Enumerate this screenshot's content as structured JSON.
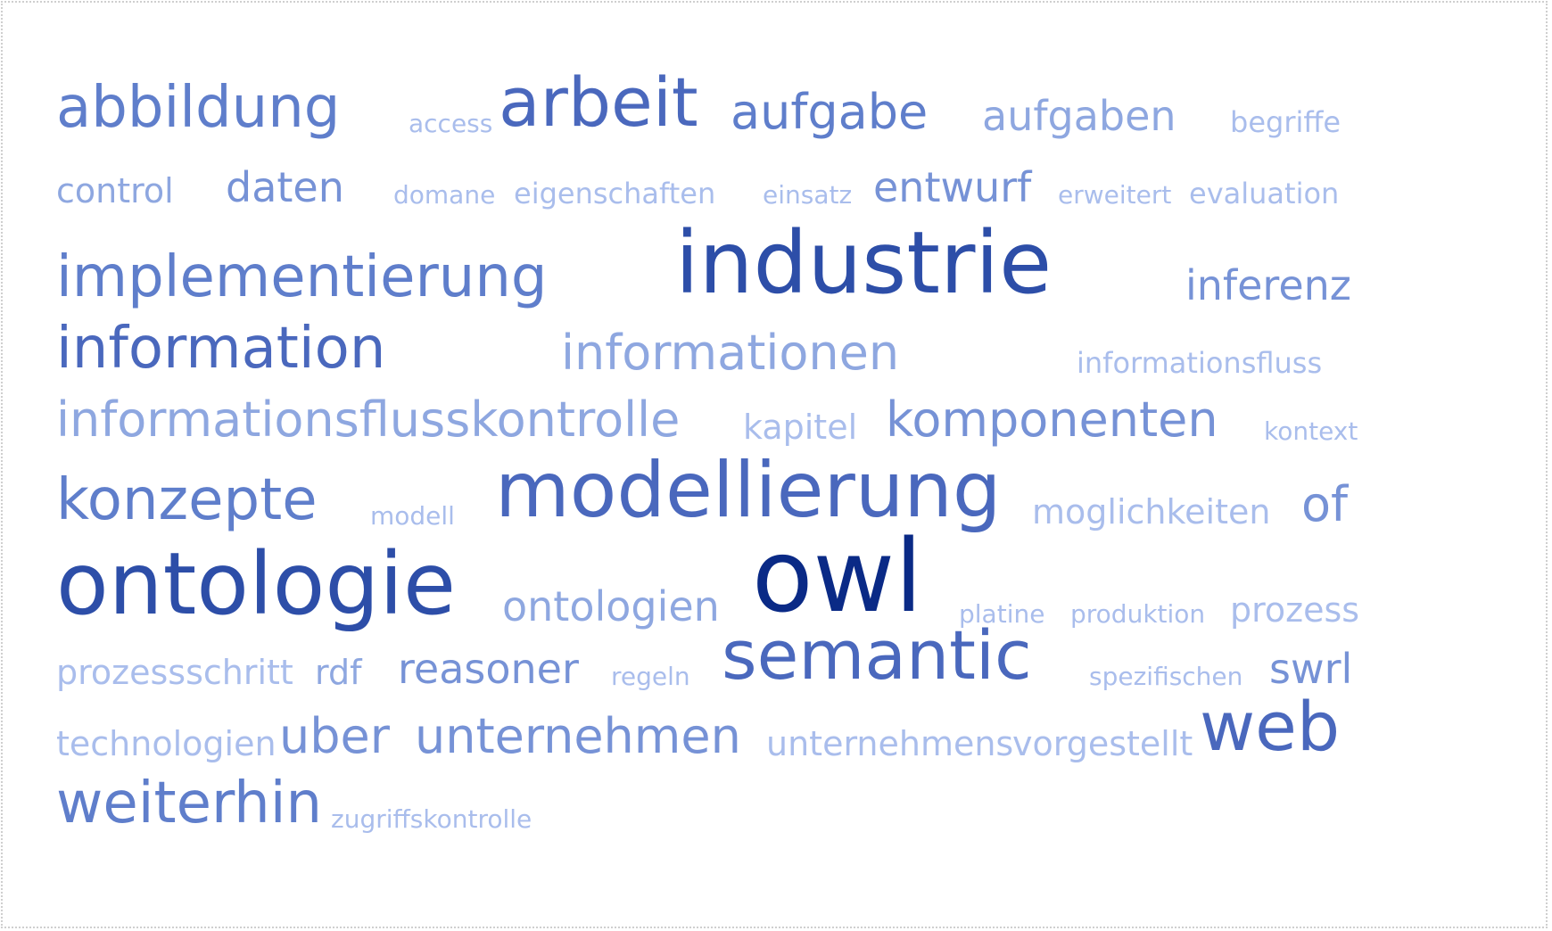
{
  "tag_cloud": {
    "words": [
      {
        "text": "abbildung"
      },
      {
        "text": "access"
      },
      {
        "text": "arbeit"
      },
      {
        "text": "aufgabe"
      },
      {
        "text": "aufgaben"
      },
      {
        "text": "begriffe"
      },
      {
        "text": "control"
      },
      {
        "text": "daten"
      },
      {
        "text": "domane"
      },
      {
        "text": "eigenschaften"
      },
      {
        "text": "einsatz"
      },
      {
        "text": "entwurf"
      },
      {
        "text": "erweitert"
      },
      {
        "text": "evaluation"
      },
      {
        "text": "implementierung"
      },
      {
        "text": "industrie"
      },
      {
        "text": "inferenz"
      },
      {
        "text": "information"
      },
      {
        "text": "informationen"
      },
      {
        "text": "informationsfluss"
      },
      {
        "text": "informationsflusskontrolle"
      },
      {
        "text": "kapitel"
      },
      {
        "text": "komponenten"
      },
      {
        "text": "kontext"
      },
      {
        "text": "konzepte"
      },
      {
        "text": "modell"
      },
      {
        "text": "modellierung"
      },
      {
        "text": "moglichkeiten"
      },
      {
        "text": "of"
      },
      {
        "text": "ontologie"
      },
      {
        "text": "ontologien"
      },
      {
        "text": "owl"
      },
      {
        "text": "platine"
      },
      {
        "text": "produktion"
      },
      {
        "text": "prozess"
      },
      {
        "text": "prozessschritt"
      },
      {
        "text": "rdf"
      },
      {
        "text": "reasoner"
      },
      {
        "text": "regeln"
      },
      {
        "text": "semantic"
      },
      {
        "text": "spezifischen"
      },
      {
        "text": "swrl"
      },
      {
        "text": "technologien"
      },
      {
        "text": "uber"
      },
      {
        "text": "unternehmen"
      },
      {
        "text": "unternehmens"
      },
      {
        "text": "vorgestellt"
      },
      {
        "text": "web"
      },
      {
        "text": "weiterhin"
      },
      {
        "text": "zugriffskontrolle"
      }
    ]
  }
}
